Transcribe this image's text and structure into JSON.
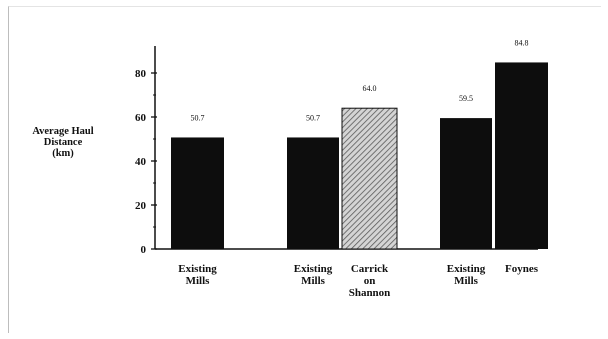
{
  "chart_data": {
    "type": "bar",
    "ylabel_lines": [
      "Average Haul",
      "Distance",
      "(km)"
    ],
    "ylim": [
      0,
      90
    ],
    "yticks": [
      "0",
      "20",
      "40",
      "60",
      "80"
    ],
    "bars": [
      {
        "category_lines": [
          "Existing",
          "Mills"
        ],
        "value": 50.7,
        "label": "50.7",
        "fill": "solid"
      },
      {
        "category_lines": [
          "Existing",
          "Mills"
        ],
        "value": 50.7,
        "label": "50.7",
        "fill": "solid"
      },
      {
        "category_lines": [
          "Carrick",
          "on",
          "Shannon"
        ],
        "value": 64.0,
        "label": "64.0",
        "fill": "hatched"
      },
      {
        "category_lines": [
          "Existing",
          "Mills"
        ],
        "value": 59.5,
        "label": "59.5",
        "fill": "solid"
      },
      {
        "category_lines": [
          "Foynes"
        ],
        "value": 84.8,
        "label": "84.8",
        "fill": "solid"
      }
    ],
    "grid": false,
    "legend": "none",
    "colors": {
      "bar": "#0d0d0d",
      "hatch_bg": "#d4d4d4",
      "hatch_line": "#5a5a5a",
      "axis": "#111111"
    }
  }
}
